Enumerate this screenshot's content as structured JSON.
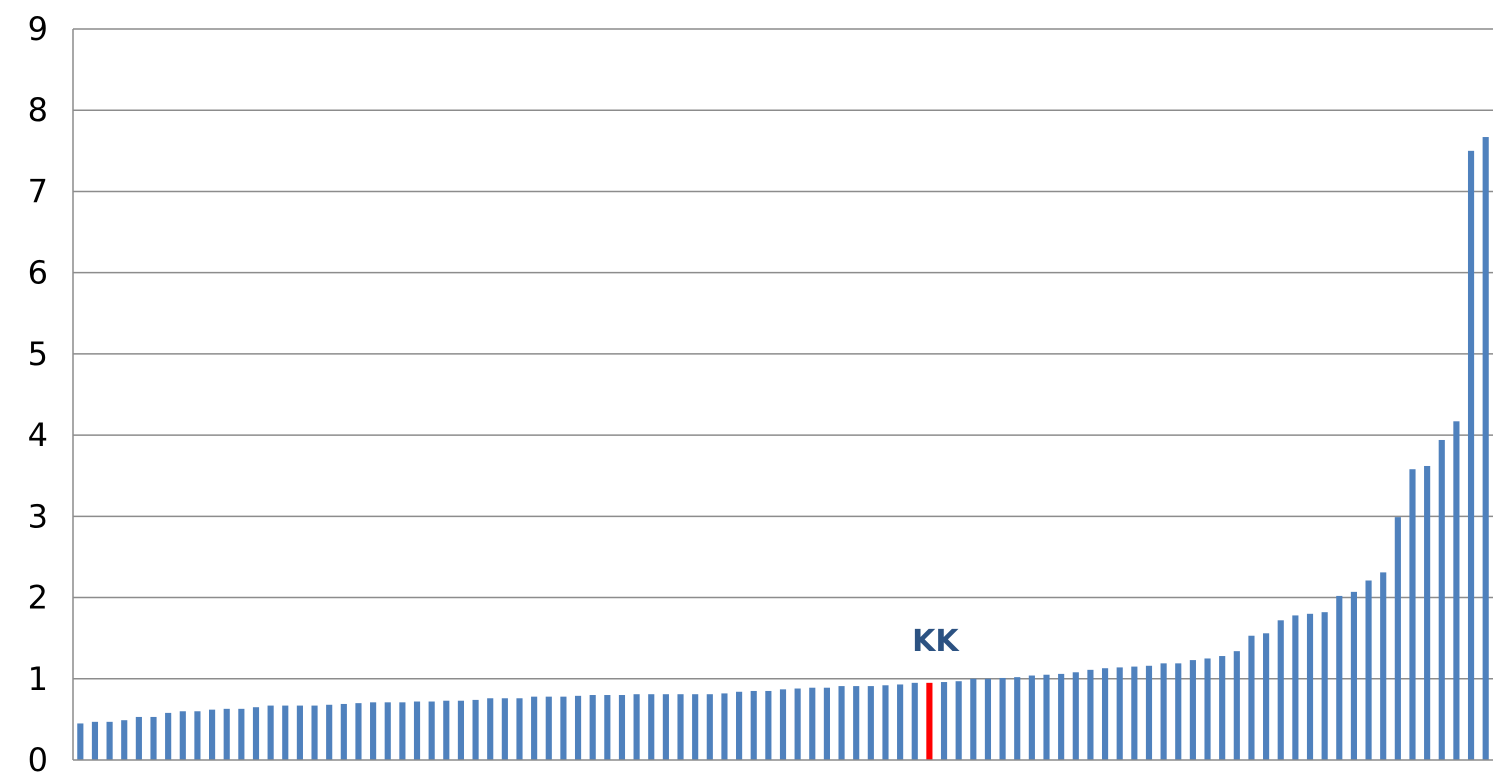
{
  "chart_data": {
    "type": "bar",
    "ylim": [
      0,
      9
    ],
    "yticks": [
      "0",
      "1",
      "2",
      "3",
      "4",
      "5",
      "6",
      "7",
      "8",
      "9"
    ],
    "grid": true,
    "bar_color": "#4f81bd",
    "highlight_color": "#ff0000",
    "highlight_index": 58,
    "annotation": {
      "text": "KK",
      "color": "#2c5282"
    },
    "values": [
      0.45,
      0.47,
      0.47,
      0.49,
      0.53,
      0.53,
      0.58,
      0.6,
      0.6,
      0.62,
      0.63,
      0.63,
      0.65,
      0.67,
      0.67,
      0.67,
      0.67,
      0.68,
      0.69,
      0.7,
      0.71,
      0.71,
      0.71,
      0.72,
      0.72,
      0.73,
      0.73,
      0.74,
      0.76,
      0.76,
      0.76,
      0.78,
      0.78,
      0.78,
      0.79,
      0.8,
      0.8,
      0.8,
      0.81,
      0.81,
      0.81,
      0.81,
      0.81,
      0.81,
      0.82,
      0.84,
      0.85,
      0.85,
      0.87,
      0.88,
      0.89,
      0.89,
      0.91,
      0.91,
      0.91,
      0.92,
      0.93,
      0.95,
      0.95,
      0.96,
      0.97,
      1.0,
      1.0,
      1.01,
      1.02,
      1.04,
      1.05,
      1.06,
      1.08,
      1.11,
      1.13,
      1.14,
      1.15,
      1.16,
      1.19,
      1.19,
      1.23,
      1.25,
      1.28,
      1.34,
      1.53,
      1.56,
      1.72,
      1.78,
      1.8,
      1.82,
      2.02,
      2.07,
      2.21,
      2.31,
      2.99,
      3.58,
      3.62,
      3.94,
      4.17,
      7.5,
      7.67
    ]
  }
}
